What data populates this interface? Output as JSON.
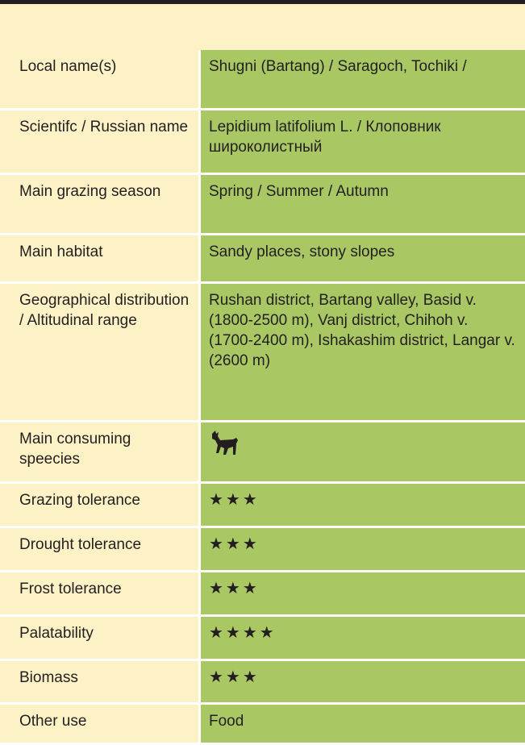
{
  "table": {
    "rows": [
      {
        "label": "Local name(s)",
        "value": "Shugni (Bartang) / Saragoch, Tochiki /"
      },
      {
        "label": "Scientifc / Russian name",
        "value": "Lepidium latifolium L. / Клоповник широколистный"
      },
      {
        "label": "Main grazing season",
        "value": "Spring / Summer / Autumn"
      },
      {
        "label": "Main habitat",
        "value": "Sandy places, stony slopes"
      },
      {
        "label": "Geographical distribution / Altitudinal range",
        "value": "Rushan district, Bartang valley, Basid v. (1800-2500 m), Vanj district, Chihoh v. (1700-2400 m), Ishakashim district, Langar v. (2600 m)"
      },
      {
        "label": "Main consuming speecies"
      },
      {
        "label": "Grazing tolerance",
        "value": "★★★"
      },
      {
        "label": "Drought tolerance",
        "value": "★★★"
      },
      {
        "label": "Frost tolerance",
        "value": "★★★"
      },
      {
        "label": "Palatability",
        "value": "★★★★"
      },
      {
        "label": "Biomass",
        "value": "★★★"
      },
      {
        "label": "Other use",
        "value": "Food"
      }
    ]
  }
}
